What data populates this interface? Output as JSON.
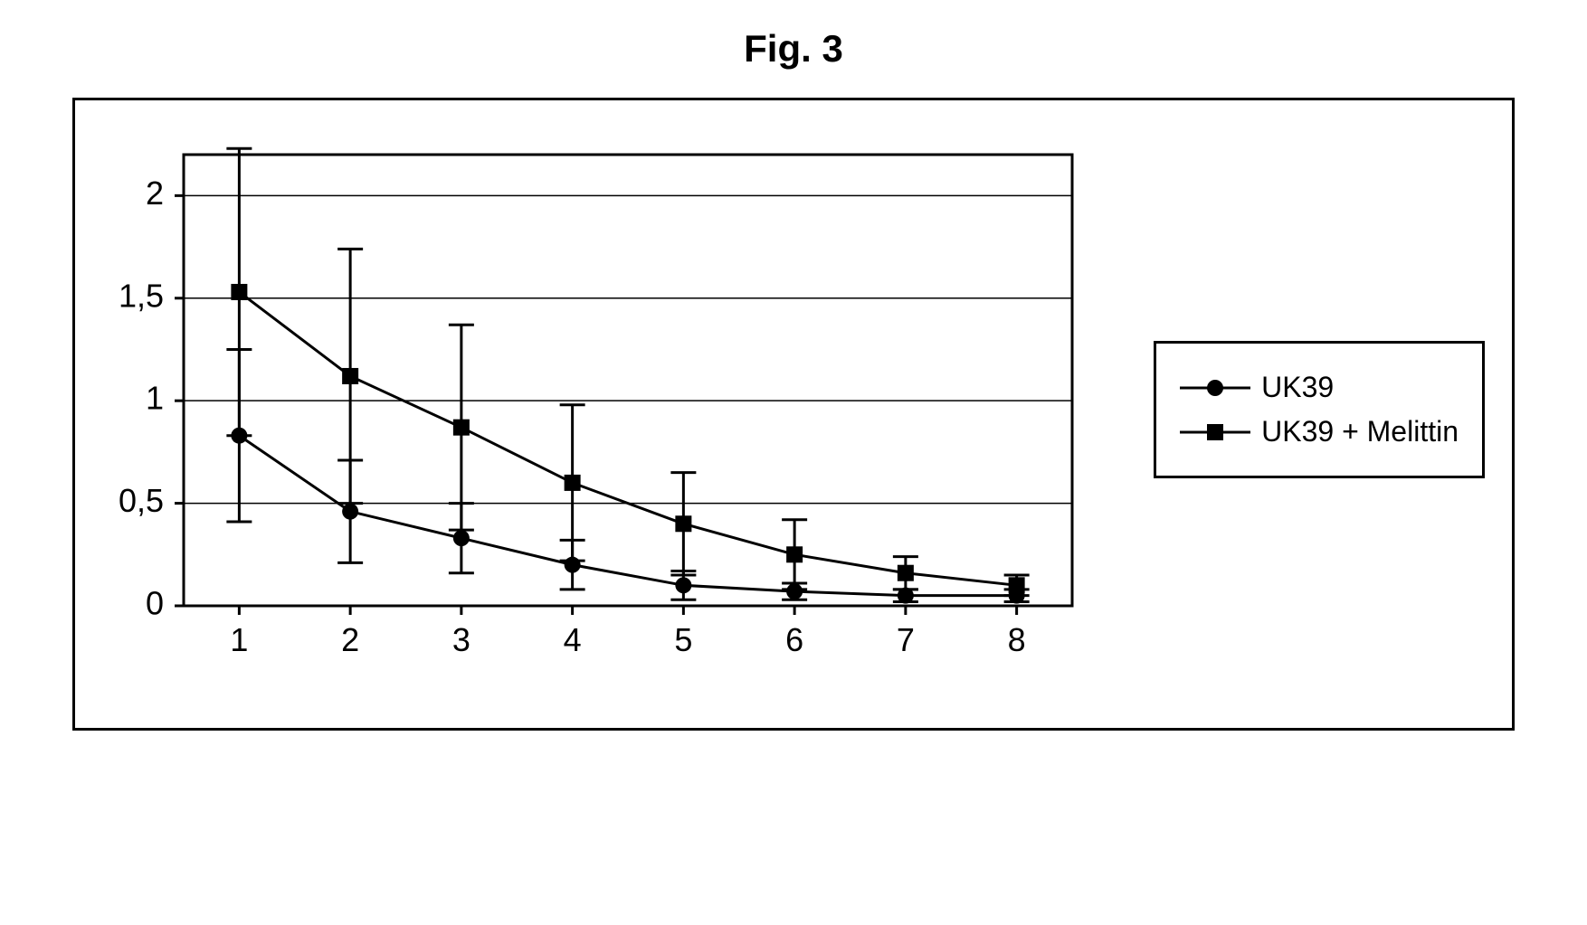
{
  "figure_title": "Fig. 3",
  "title_fontsize": 42,
  "chart": {
    "type": "line",
    "x_categories": [
      "1",
      "2",
      "3",
      "4",
      "5",
      "6",
      "7",
      "8"
    ],
    "x_positions": [
      1,
      2,
      3,
      4,
      5,
      6,
      7,
      8
    ],
    "ylim": [
      0,
      2.2
    ],
    "ytick_values": [
      0,
      0.5,
      1,
      1.5,
      2
    ],
    "ytick_labels": [
      "0",
      "0,5",
      "1",
      "1,5",
      "2"
    ],
    "xlim": [
      0.5,
      8.5
    ],
    "background_color": "#ffffff",
    "axis_color": "#000000",
    "grid_color": "#000000",
    "grid_width": 1.5,
    "tick_length": 10,
    "axis_width": 3,
    "label_fontsize": 36,
    "series": [
      {
        "name": "UK39",
        "marker": "circle",
        "marker_size": 18,
        "color": "#000000",
        "line_width": 3,
        "y": [
          0.83,
          0.46,
          0.33,
          0.2,
          0.1,
          0.07,
          0.05,
          0.05
        ],
        "err": [
          0.42,
          0.25,
          0.17,
          0.12,
          0.07,
          0.04,
          0.03,
          0.03
        ]
      },
      {
        "name": "UK39 + Melittin",
        "marker": "square",
        "marker_size": 18,
        "color": "#000000",
        "line_width": 3,
        "y": [
          1.53,
          1.12,
          0.87,
          0.6,
          0.4,
          0.25,
          0.16,
          0.1
        ],
        "err": [
          0.7,
          0.62,
          0.5,
          0.38,
          0.25,
          0.17,
          0.08,
          0.05
        ]
      }
    ]
  },
  "legend": {
    "border_color": "#000000",
    "font_size": 32
  }
}
